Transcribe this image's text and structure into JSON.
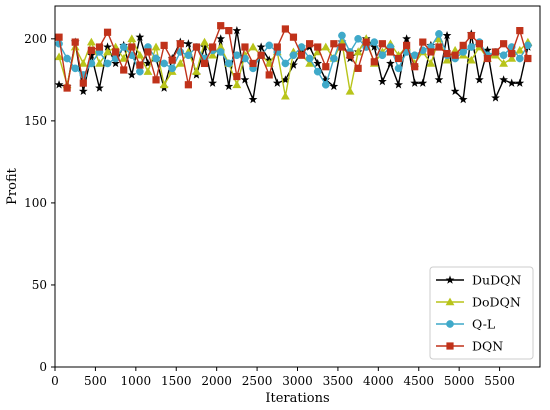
{
  "chart_data": {
    "type": "line",
    "xlabel": "Iterations",
    "ylabel": "Profit",
    "xlim": [
      0,
      6000
    ],
    "ylim": [
      0,
      220
    ],
    "xticks": [
      0,
      500,
      1000,
      1500,
      2000,
      2500,
      3000,
      3500,
      4000,
      4500,
      5000,
      5500
    ],
    "yticks": [
      0,
      50,
      100,
      150,
      200
    ],
    "grid": false,
    "legend_position": "bottom-right",
    "x": [
      50,
      150,
      250,
      350,
      450,
      550,
      650,
      750,
      850,
      950,
      1050,
      1150,
      1250,
      1350,
      1450,
      1550,
      1650,
      1750,
      1850,
      1950,
      2050,
      2150,
      2250,
      2350,
      2450,
      2550,
      2650,
      2750,
      2850,
      2950,
      3050,
      3150,
      3250,
      3350,
      3450,
      3550,
      3650,
      3750,
      3850,
      3950,
      4050,
      4150,
      4250,
      4350,
      4450,
      4550,
      4650,
      4750,
      4850,
      4950,
      5050,
      5150,
      5250,
      5350,
      5450,
      5550,
      5650,
      5750,
      5850
    ],
    "series": [
      {
        "name": "DuDQN",
        "color": "#000000",
        "marker": "star",
        "values": [
          172,
          171,
          198,
          168,
          190,
          170,
          195,
          185,
          196,
          178,
          201,
          185,
          188,
          170,
          188,
          198,
          197,
          178,
          195,
          173,
          200,
          171,
          205,
          175,
          163,
          195,
          187,
          173,
          175,
          184,
          192,
          195,
          185,
          175,
          171,
          198,
          188,
          192,
          200,
          195,
          174,
          185,
          172,
          200,
          173,
          173,
          196,
          175,
          202,
          168,
          163,
          203,
          175,
          193,
          164,
          175,
          173,
          173,
          195
        ]
      },
      {
        "name": "DoDQN",
        "color": "#b8c41a",
        "marker": "triangle",
        "values": [
          189,
          172,
          195,
          185,
          198,
          185,
          192,
          195,
          188,
          200,
          190,
          180,
          195,
          172,
          180,
          185,
          192,
          180,
          198,
          190,
          195,
          185,
          172,
          190,
          195,
          190,
          185,
          192,
          165,
          192,
          190,
          185,
          192,
          195,
          188,
          198,
          168,
          192,
          200,
          185,
          192,
          197,
          190,
          195,
          185,
          192,
          185,
          200,
          187,
          193,
          190,
          187,
          195,
          188,
          190,
          185,
          188,
          193,
          198
        ]
      },
      {
        "name": "Q-L",
        "color": "#3fa9c9",
        "marker": "circle",
        "values": [
          197,
          188,
          182,
          178,
          185,
          192,
          185,
          188,
          195,
          190,
          180,
          195,
          188,
          185,
          182,
          192,
          190,
          195,
          188,
          193,
          192,
          185,
          190,
          188,
          182,
          190,
          196,
          192,
          185,
          190,
          195,
          188,
          180,
          172,
          188,
          202,
          192,
          200,
          195,
          198,
          190,
          195,
          182,
          192,
          190,
          193,
          195,
          203,
          190,
          188,
          192,
          195,
          198,
          190,
          192,
          190,
          195,
          188,
          196
        ]
      },
      {
        "name": "DQN",
        "color": "#c0321a",
        "marker": "square",
        "values": [
          201,
          170,
          198,
          173,
          193,
          195,
          204,
          192,
          181,
          195,
          184,
          192,
          175,
          196,
          187,
          197,
          172,
          195,
          185,
          195,
          208,
          205,
          177,
          195,
          185,
          190,
          178,
          195,
          206,
          201,
          190,
          197,
          195,
          183,
          197,
          195,
          190,
          182,
          198,
          186,
          197,
          192,
          188,
          196,
          183,
          198,
          192,
          195,
          191,
          190,
          196,
          202,
          197,
          188,
          192,
          197,
          191,
          205,
          188
        ]
      }
    ]
  }
}
